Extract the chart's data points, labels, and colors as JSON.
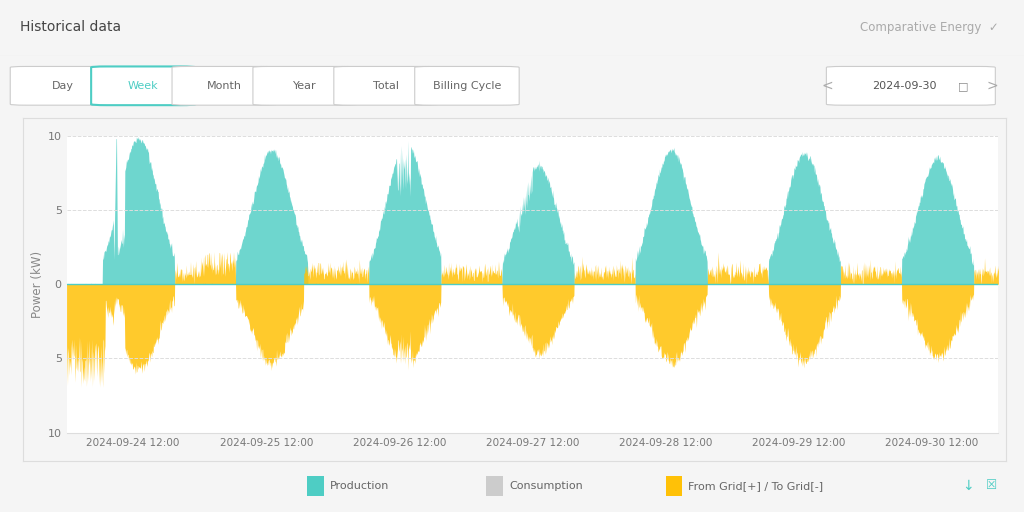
{
  "title": "Historical data",
  "title_right": "Comparative Energy",
  "ylabel": "Power (kW)",
  "background_color": "#f5f5f5",
  "chart_bg": "#ffffff",
  "grid_color": "#cccccc",
  "teal_color": "#4ecdc4",
  "orange_color": "#ffc107",
  "gray_color": "#cccccc",
  "ylim": [
    -10,
    10
  ],
  "yticks": [
    -10,
    -5,
    0,
    5,
    10
  ],
  "x_labels": [
    "2024-09-24 12:00",
    "2024-09-25 12:00",
    "2024-09-26 12:00",
    "2024-09-27 12:00",
    "2024-09-28 12:00",
    "2024-09-29 12:00",
    "2024-09-30 12:00"
  ],
  "legend_items": [
    "Production",
    "Consumption",
    "From Grid[+] / To Grid[-]"
  ],
  "legend_colors": [
    "#4ecdc4",
    "#cccccc",
    "#ffc107"
  ],
  "tab_labels": [
    "Day",
    "Week",
    "Month",
    "Year",
    "Total",
    "Billing Cycle"
  ],
  "active_tab": "Week",
  "date_display": "2024-09-30",
  "n_points": 2016,
  "peaks": [
    9.8,
    9.0,
    9.5,
    8.0,
    9.0,
    8.8,
    8.5
  ],
  "peak_hours": [
    13.0,
    13.0,
    13.2,
    13.0,
    13.0,
    13.0,
    13.0
  ]
}
